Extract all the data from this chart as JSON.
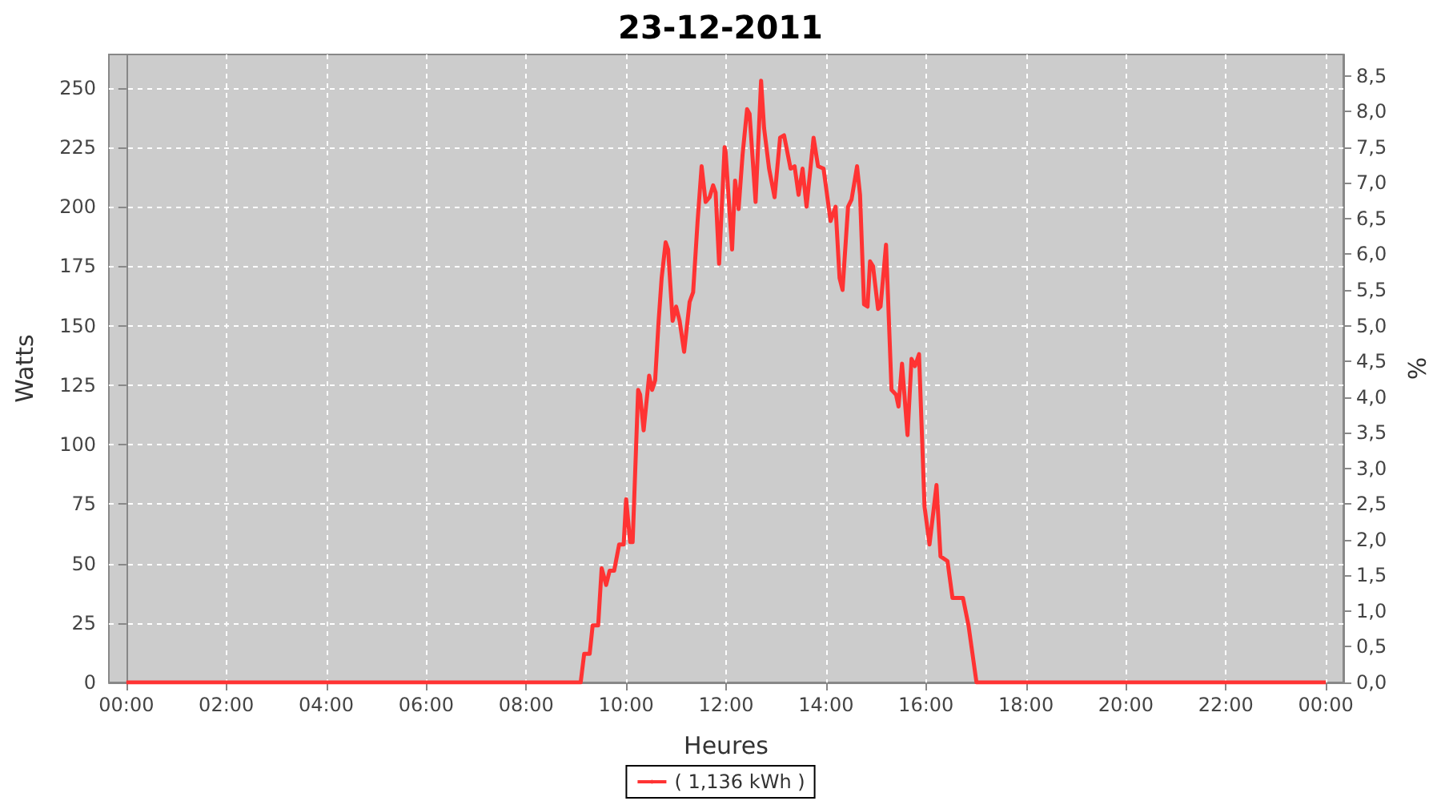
{
  "chart_data": {
    "type": "line",
    "title": "23-12-2011",
    "xlabel": "Heures",
    "ylabel": "Watts",
    "y2label": "%",
    "xlim": [
      -0.35,
      24.35
    ],
    "xticks": [
      {
        "value": 0,
        "label": "00:00"
      },
      {
        "value": 2,
        "label": "02:00"
      },
      {
        "value": 4,
        "label": "04:00"
      },
      {
        "value": 6,
        "label": "06:00"
      },
      {
        "value": 8,
        "label": "08:00"
      },
      {
        "value": 10,
        "label": "10:00"
      },
      {
        "value": 12,
        "label": "12:00"
      },
      {
        "value": 14,
        "label": "14:00"
      },
      {
        "value": 16,
        "label": "16:00"
      },
      {
        "value": 18,
        "label": "18:00"
      },
      {
        "value": 20,
        "label": "20:00"
      },
      {
        "value": 22,
        "label": "22:00"
      },
      {
        "value": 24,
        "label": "00:00"
      }
    ],
    "ylim": [
      0,
      264
    ],
    "yticks": [
      0,
      25,
      50,
      75,
      100,
      125,
      150,
      175,
      200,
      225,
      250
    ],
    "y2lim": [
      0,
      8.8
    ],
    "y2ticks": [
      {
        "value": 0,
        "label": "0,0"
      },
      {
        "value": 0.5,
        "label": "0,5"
      },
      {
        "value": 1,
        "label": "1,0"
      },
      {
        "value": 1.5,
        "label": "1,5"
      },
      {
        "value": 2,
        "label": "2,0"
      },
      {
        "value": 2.5,
        "label": "2,5"
      },
      {
        "value": 3,
        "label": "3,0"
      },
      {
        "value": 3.5,
        "label": "3,5"
      },
      {
        "value": 4,
        "label": "4,0"
      },
      {
        "value": 4.5,
        "label": "4,5"
      },
      {
        "value": 5,
        "label": "5,0"
      },
      {
        "value": 5.5,
        "label": "5,5"
      },
      {
        "value": 6,
        "label": "6,0"
      },
      {
        "value": 6.5,
        "label": "6,5"
      },
      {
        "value": 7,
        "label": "7,0"
      },
      {
        "value": 7.5,
        "label": "7,5"
      },
      {
        "value": 8,
        "label": "8,0"
      },
      {
        "value": 8.5,
        "label": "8,5"
      }
    ],
    "grid": true,
    "legend": "bottom",
    "series": [
      {
        "name": "( 1,136 kWh )",
        "color": "#ff3333",
        "x": [
          0,
          9.09,
          9.16,
          9.27,
          9.33,
          9.44,
          9.51,
          9.6,
          9.67,
          9.76,
          9.86,
          9.95,
          10.0,
          10.08,
          10.13,
          10.24,
          10.28,
          10.35,
          10.46,
          10.52,
          10.58,
          10.65,
          10.71,
          10.79,
          10.84,
          10.93,
          11.0,
          11.07,
          11.16,
          11.27,
          11.34,
          11.43,
          11.51,
          11.59,
          11.67,
          11.74,
          11.79,
          11.86,
          11.97,
          11.99,
          12.12,
          12.18,
          12.25,
          12.33,
          12.42,
          12.47,
          12.59,
          12.7,
          12.76,
          12.86,
          12.97,
          13.08,
          13.16,
          13.29,
          13.37,
          13.45,
          13.53,
          13.61,
          13.75,
          13.84,
          13.95,
          14.09,
          14.19,
          14.27,
          14.33,
          14.44,
          14.51,
          14.62,
          14.68,
          14.76,
          14.83,
          14.88,
          14.94,
          15.04,
          15.09,
          15.2,
          15.31,
          15.4,
          15.45,
          15.52,
          15.63,
          15.71,
          15.78,
          15.86,
          15.97,
          16.07,
          16.21,
          16.29,
          16.43,
          16.53,
          16.74,
          16.85,
          17.01,
          24
        ],
        "values": [
          0,
          0,
          12,
          12,
          24,
          24,
          48,
          41,
          47,
          47,
          58,
          58,
          77,
          59,
          59,
          123,
          121,
          106,
          129,
          123,
          127,
          152,
          170,
          185,
          182,
          152,
          158,
          152,
          139,
          160,
          164,
          194,
          217,
          202,
          204,
          209,
          206,
          176,
          225,
          223,
          182,
          211,
          199,
          222,
          241,
          239,
          202,
          253,
          233,
          216,
          204,
          229,
          230,
          216,
          217,
          205,
          216,
          200,
          229,
          217,
          216,
          194,
          200,
          170,
          165,
          200,
          203,
          217,
          205,
          159,
          158,
          177,
          175,
          157,
          158,
          184,
          123,
          121,
          116,
          134,
          104,
          136,
          133,
          138,
          74,
          58,
          83,
          53,
          51,
          35.5,
          35.5,
          24,
          0,
          0
        ]
      }
    ]
  }
}
